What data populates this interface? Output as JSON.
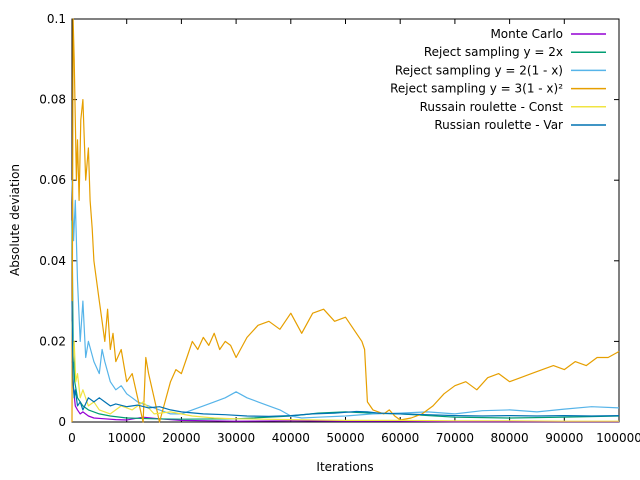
{
  "chart_data": {
    "type": "line",
    "title": "",
    "xlabel": "Iterations",
    "ylabel": "Absolute deviation",
    "xlim": [
      0,
      100000
    ],
    "ylim": [
      0,
      0.1
    ],
    "x_ticks": [
      "0",
      "10000",
      "20000",
      "30000",
      "40000",
      "50000",
      "60000",
      "70000",
      "80000",
      "90000",
      "100000"
    ],
    "y_ticks": [
      "0",
      "0.02",
      "0.04",
      "0.06",
      "0.08",
      "0.1"
    ],
    "grid": false,
    "legend_position": "top-right",
    "series": [
      {
        "name": "Monte Carlo",
        "color": "#9400d3",
        "x": [
          0,
          300,
          600,
          1000,
          1500,
          2000,
          3000,
          4000,
          6000,
          8000,
          10000,
          13000,
          16000,
          20000,
          25000,
          30000,
          40000,
          50000,
          60000,
          70000,
          80000,
          90000,
          100000
        ],
        "y": [
          0.015,
          0.008,
          0.004,
          0.003,
          0.002,
          0.0025,
          0.0015,
          0.001,
          0.0008,
          0.0006,
          0.0005,
          0.0012,
          0.0008,
          0.0004,
          0.0003,
          0.0002,
          0.0003,
          0.0002,
          0.0002,
          0.0001,
          0.0001,
          0.0001,
          0.0001
        ]
      },
      {
        "name": "Reject sampling y = 2x",
        "color": "#009e73",
        "x": [
          0,
          200,
          500,
          1000,
          2000,
          3000,
          5000,
          7000,
          10000,
          15000,
          20000,
          30000,
          40000,
          45000,
          50000,
          55000,
          60000,
          70000,
          80000,
          90000,
          100000
        ],
        "y": [
          0.05,
          0.02,
          0.01,
          0.006,
          0.004,
          0.003,
          0.002,
          0.0015,
          0.001,
          0.0008,
          0.0007,
          0.0008,
          0.0015,
          0.0022,
          0.0025,
          0.0022,
          0.002,
          0.0012,
          0.001,
          0.0012,
          0.0015
        ]
      },
      {
        "name": "Reject sampling y = 2(1 - x)",
        "color": "#56b4e9",
        "x": [
          0,
          300,
          600,
          1000,
          1500,
          2000,
          2500,
          3000,
          4000,
          5000,
          5500,
          6000,
          7000,
          8000,
          9000,
          10000,
          11000,
          12000,
          14000,
          16000,
          18000,
          20000,
          22000,
          24000,
          26000,
          28000,
          30000,
          32000,
          34000,
          36000,
          38000,
          40000,
          42000,
          45000,
          50000,
          55000,
          60000,
          65000,
          70000,
          75000,
          80000,
          85000,
          90000,
          95000,
          100000
        ],
        "y": [
          0.06,
          0.045,
          0.055,
          0.035,
          0.02,
          0.03,
          0.016,
          0.02,
          0.015,
          0.012,
          0.018,
          0.015,
          0.01,
          0.008,
          0.009,
          0.007,
          0.006,
          0.005,
          0.004,
          0.003,
          0.002,
          0.002,
          0.003,
          0.004,
          0.005,
          0.006,
          0.0075,
          0.006,
          0.005,
          0.004,
          0.003,
          0.0015,
          0.001,
          0.0012,
          0.0015,
          0.002,
          0.0022,
          0.0025,
          0.002,
          0.0028,
          0.003,
          0.0025,
          0.0032,
          0.0038,
          0.0035
        ]
      },
      {
        "name": "Reject sampling y = 3(1 - x)²",
        "color": "#e69f00",
        "x": [
          0,
          200,
          400,
          600,
          800,
          1000,
          1300,
          1600,
          2000,
          2500,
          3000,
          3300,
          3700,
          4000,
          4500,
          5000,
          5500,
          6000,
          6500,
          7000,
          7500,
          8000,
          9000,
          10000,
          11000,
          12000,
          13000,
          13500,
          14000,
          15000,
          16000,
          17000,
          18000,
          19000,
          20000,
          21000,
          22000,
          23000,
          24000,
          25000,
          26000,
          27000,
          28000,
          29000,
          30000,
          32000,
          34000,
          36000,
          38000,
          40000,
          42000,
          44000,
          46000,
          48000,
          50000,
          52000,
          53000,
          53500,
          54000,
          55000,
          57000,
          58000,
          59000,
          60000,
          62000,
          64000,
          66000,
          68000,
          70000,
          72000,
          74000,
          76000,
          78000,
          80000,
          82000,
          84000,
          86000,
          88000,
          90000,
          92000,
          94000,
          96000,
          98000,
          100000
        ],
        "y": [
          0.0,
          0.1,
          0.09,
          0.075,
          0.06,
          0.07,
          0.055,
          0.075,
          0.08,
          0.06,
          0.068,
          0.055,
          0.048,
          0.04,
          0.035,
          0.03,
          0.025,
          0.02,
          0.028,
          0.018,
          0.022,
          0.015,
          0.018,
          0.01,
          0.012,
          0.006,
          0.0,
          0.016,
          0.012,
          0.006,
          0.0,
          0.005,
          0.01,
          0.013,
          0.012,
          0.016,
          0.02,
          0.018,
          0.021,
          0.019,
          0.022,
          0.018,
          0.02,
          0.019,
          0.016,
          0.021,
          0.024,
          0.025,
          0.023,
          0.027,
          0.022,
          0.027,
          0.028,
          0.025,
          0.026,
          0.022,
          0.02,
          0.018,
          0.005,
          0.003,
          0.002,
          0.003,
          0.0015,
          0.0005,
          0.001,
          0.002,
          0.004,
          0.007,
          0.009,
          0.01,
          0.008,
          0.011,
          0.012,
          0.01,
          0.011,
          0.012,
          0.013,
          0.014,
          0.013,
          0.015,
          0.014,
          0.016,
          0.016,
          0.0175
        ]
      },
      {
        "name": "Russain roulette - Const",
        "color": "#f0e442",
        "x": [
          0,
          200,
          400,
          700,
          1000,
          1500,
          2000,
          3000,
          4000,
          5000,
          7000,
          9000,
          11000,
          13000,
          15000,
          18000,
          22000,
          26000,
          30000,
          40000,
          50000,
          60000,
          70000,
          80000,
          90000,
          100000
        ],
        "y": [
          0.025,
          0.015,
          0.02,
          0.01,
          0.012,
          0.006,
          0.008,
          0.004,
          0.005,
          0.003,
          0.002,
          0.004,
          0.003,
          0.005,
          0.002,
          0.0025,
          0.0015,
          0.001,
          0.0008,
          0.0006,
          0.0004,
          0.0004,
          0.0003,
          0.0003,
          0.0002,
          0.0002
        ]
      },
      {
        "name": "Russian roulette - Var",
        "color": "#0072b2",
        "x": [
          0,
          200,
          400,
          600,
          1000,
          1500,
          2000,
          3000,
          4000,
          5000,
          6000,
          7000,
          8000,
          10000,
          12000,
          14000,
          16000,
          18000,
          20000,
          24000,
          28000,
          32000,
          36000,
          40000,
          44000,
          48000,
          50000,
          52000,
          54000,
          56000,
          60000,
          65000,
          70000,
          75000,
          80000,
          85000,
          90000,
          95000,
          100000
        ],
        "y": [
          0.03,
          0.01,
          0.006,
          0.008,
          0.004,
          0.005,
          0.003,
          0.006,
          0.005,
          0.006,
          0.005,
          0.004,
          0.0045,
          0.0038,
          0.0042,
          0.0035,
          0.0038,
          0.003,
          0.0025,
          0.002,
          0.0018,
          0.0015,
          0.0014,
          0.0016,
          0.002,
          0.0022,
          0.0024,
          0.0026,
          0.0025,
          0.0022,
          0.002,
          0.0018,
          0.0016,
          0.0015,
          0.0016,
          0.0015,
          0.0016,
          0.0015,
          0.0016
        ]
      }
    ]
  }
}
